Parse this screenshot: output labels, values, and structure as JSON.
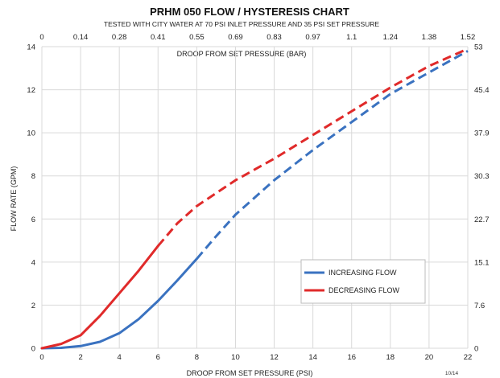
{
  "chart_data": {
    "type": "line",
    "title": "PRHM 050 FLOW / HYSTERESIS CHART",
    "subtitle": "TESTED WITH CITY WATER AT 70 PSI INLET PRESSURE AND 35 PSI SET PRESSURE",
    "xlabel": "DROOP FROM SET PRESSURE (PSI)",
    "x2label": "DROOP FROM SET PRESSURE (BAR)",
    "ylabel": "FLOW RATE (GPM)",
    "xlim": [
      0,
      22
    ],
    "ylim": [
      0,
      14
    ],
    "x_ticks": [
      "0",
      "2",
      "4",
      "6",
      "8",
      "10",
      "12",
      "14",
      "16",
      "18",
      "20",
      "22"
    ],
    "x2_ticks": [
      "0",
      "0.14",
      "0.28",
      "0.41",
      "0.55",
      "0.69",
      "0.83",
      "0.97",
      "1.1",
      "1.24",
      "1.38",
      "1.52"
    ],
    "y_ticks": [
      "0",
      "2",
      "4",
      "6",
      "8",
      "10",
      "12",
      "14"
    ],
    "y2_ticks": [
      "0",
      "7.6",
      "15.1",
      "22.7",
      "30.3",
      "37.9",
      "45.4",
      "53"
    ],
    "grid": true,
    "legend_position": "lower-right",
    "date_mark": "10/14",
    "series": [
      {
        "name": "INCREASING FLOW",
        "color": "#3a72c0",
        "solid_until_x": 8,
        "x": [
          0,
          1,
          2,
          3,
          4,
          5,
          6,
          7,
          8,
          9,
          10,
          12,
          14,
          16,
          18,
          20,
          22
        ],
        "y": [
          0,
          0.02,
          0.1,
          0.3,
          0.7,
          1.35,
          2.2,
          3.15,
          4.15,
          5.2,
          6.2,
          7.8,
          9.2,
          10.5,
          11.8,
          12.8,
          13.8
        ]
      },
      {
        "name": "DECREASING FLOW",
        "color": "#e02a2a",
        "solid_until_x": 6,
        "x": [
          0,
          1,
          2,
          3,
          4,
          5,
          6,
          7,
          8,
          10,
          12,
          14,
          16,
          18,
          20,
          22
        ],
        "y": [
          0,
          0.2,
          0.6,
          1.5,
          2.55,
          3.6,
          4.75,
          5.8,
          6.6,
          7.8,
          8.8,
          9.9,
          11.0,
          12.1,
          13.1,
          13.9
        ]
      }
    ]
  }
}
